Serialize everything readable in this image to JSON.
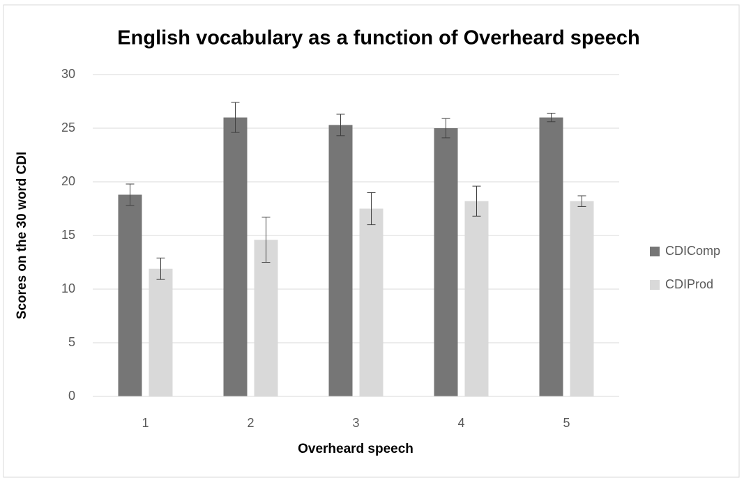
{
  "chart_data": {
    "type": "bar",
    "title": "English vocabulary as a function of Overheard speech",
    "x_label": "Overheard speech",
    "y_label": "Scores on the 30 word CDI",
    "categories": [
      "1",
      "2",
      "3",
      "4",
      "5"
    ],
    "series": [
      {
        "name": "CDIComp",
        "color": "#767676",
        "values": [
          18.8,
          26.0,
          25.3,
          25.0,
          26.0
        ],
        "errors": [
          1.0,
          1.4,
          1.0,
          0.9,
          0.4
        ]
      },
      {
        "name": "CDIProd",
        "color": "#d9d9d9",
        "values": [
          11.9,
          14.6,
          17.5,
          18.2,
          18.2
        ],
        "errors": [
          1.0,
          2.1,
          1.5,
          1.4,
          0.5
        ]
      }
    ],
    "ylim": [
      0,
      30
    ],
    "yticks": [
      0,
      5,
      10,
      15,
      20,
      25,
      30
    ],
    "grid": true,
    "legend": "right"
  }
}
